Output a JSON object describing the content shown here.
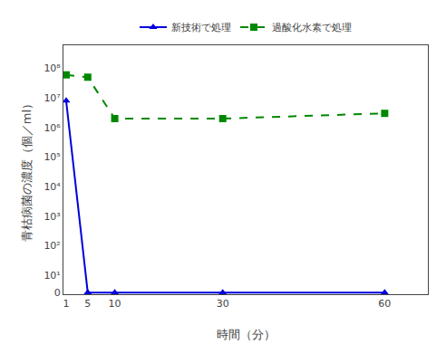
{
  "chart_data": {
    "type": "line",
    "x": [
      1,
      5,
      10,
      30,
      60
    ],
    "series": [
      {
        "name": "新技術で処理",
        "color": "#0000dd",
        "values": [
          8000000,
          0,
          0,
          0,
          0
        ],
        "marker": "triangle",
        "line_style": "solid"
      },
      {
        "name": "過酸化水素で処理",
        "color": "#008800",
        "values": [
          60000000,
          50000000,
          2000000,
          2000000,
          3000000
        ],
        "marker": "square",
        "line_style": "dashed"
      }
    ],
    "xlabel": "時間（分）",
    "ylabel": "青枯病菌の濃度（個／ml）",
    "xlim": [
      0.5,
      68
    ],
    "xticks": [
      1,
      5,
      10,
      30,
      60
    ],
    "ylim": [
      -1,
      600000000
    ],
    "yticks": [
      0,
      {
        "value": 10,
        "label": "10¹"
      },
      {
        "value": 100,
        "label": "10²"
      },
      {
        "value": 1000,
        "label": "10³"
      },
      {
        "value": 10000,
        "label": "10⁴"
      },
      {
        "value": 100000,
        "label": "10⁵"
      },
      {
        "value": 1000000,
        "label": "10⁶"
      },
      {
        "value": 10000000,
        "label": "10⁷"
      },
      {
        "value": 100000000,
        "label": "10⁸"
      }
    ],
    "log": "y",
    "grid": false,
    "legend": "top"
  }
}
